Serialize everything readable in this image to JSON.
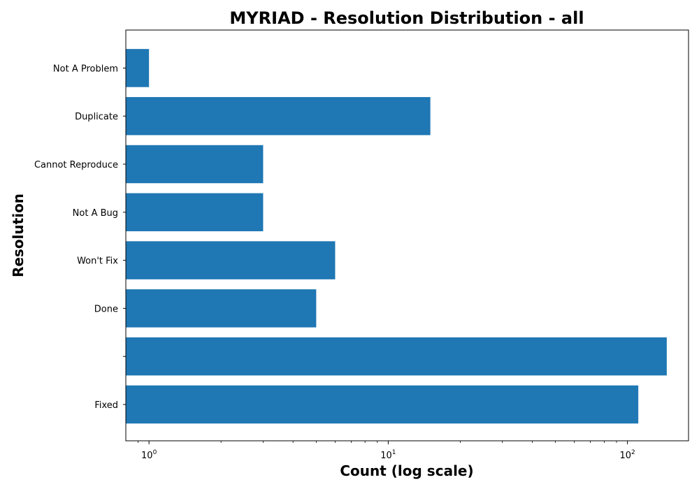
{
  "chart_data": {
    "type": "bar",
    "orientation": "horizontal",
    "title": "MYRIAD - Resolution Distribution - all",
    "xlabel": "Count (log scale)",
    "ylabel": "Resolution",
    "x_scale": "log",
    "xlim": [
      0.8,
      180
    ],
    "x_ticks": [
      {
        "value": 1,
        "base": "10",
        "exp": "0"
      },
      {
        "value": 10,
        "base": "10",
        "exp": "1"
      },
      {
        "value": 100,
        "base": "10",
        "exp": "2"
      }
    ],
    "categories": [
      "Fixed",
      "",
      "Done",
      "Won't Fix",
      "Not A Bug",
      "Cannot Reproduce",
      "Duplicate",
      "Not A Problem"
    ],
    "values": [
      111,
      146,
      5,
      6,
      3,
      3,
      15,
      1
    ],
    "bar_color": "#1f77b4",
    "grid": false,
    "legend": "none"
  }
}
